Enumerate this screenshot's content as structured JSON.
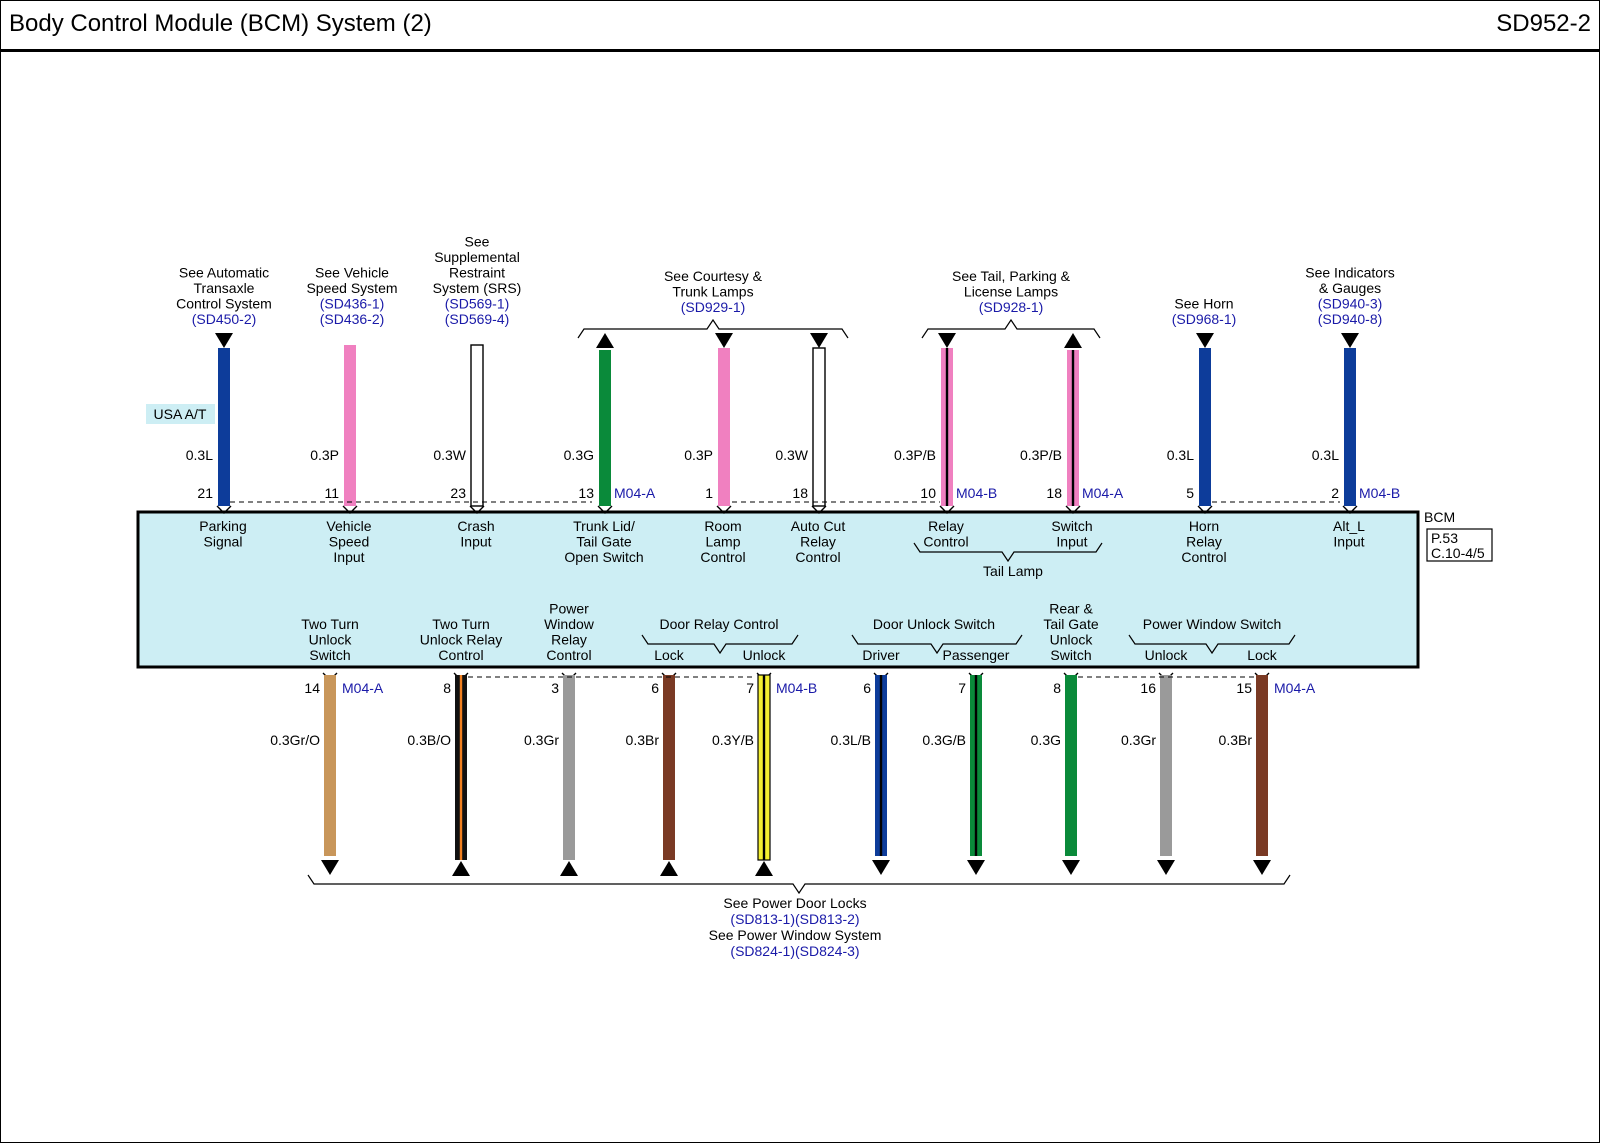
{
  "header": {
    "title": "Body Control Module (BCM) System (2)",
    "code": "SD952-2"
  },
  "colors": {
    "module_fill": "#cdeef4",
    "tag_fill": "#cdeef4",
    "ref_text": "#1a1aa8"
  },
  "module": {
    "name": "BCM",
    "page_lines": [
      "P.53",
      "C.10-4/5"
    ],
    "tail_lamp_group": "Tail Lamp",
    "bottom_groups": [
      {
        "label": "Door Relay Control"
      },
      {
        "label": "Door Unlock Switch"
      },
      {
        "label": "Power Window Switch"
      }
    ]
  },
  "option_tag": "USA A/T",
  "top_refs": [
    {
      "lines": [
        "See Automatic",
        "Transaxle",
        "Control System"
      ],
      "refs": [
        "(SD450-2)"
      ]
    },
    {
      "lines": [
        "See Vehicle",
        "Speed System"
      ],
      "refs": [
        "(SD436-1)",
        "(SD436-2)"
      ]
    },
    {
      "lines": [
        "See",
        "Supplemental",
        "Restraint",
        "System (SRS)"
      ],
      "refs": [
        "(SD569-1)",
        "(SD569-4)"
      ]
    },
    {
      "lines": [
        "See Courtesy &",
        "Trunk Lamps"
      ],
      "refs": [
        "(SD929-1)"
      ]
    },
    {
      "lines": [
        "See Tail, Parking &",
        "License Lamps"
      ],
      "refs": [
        "(SD928-1)"
      ]
    },
    {
      "lines": [
        "See Horn"
      ],
      "refs": [
        "(SD968-1)"
      ]
    },
    {
      "lines": [
        "See Indicators",
        "& Gauges"
      ],
      "refs": [
        "(SD940-3)",
        "(SD940-8)"
      ]
    }
  ],
  "bottom_ref": {
    "lines": [
      "See Power Door Locks",
      "(SD813-1)(SD813-2)",
      "See Power Window System",
      "(SD824-1)(SD824-3)"
    ]
  },
  "top_wires": [
    {
      "pin": "21",
      "wire": "0.3L",
      "connector": "",
      "label": [
        "Parking",
        "Signal"
      ],
      "color": "#0d3c9a",
      "stripe": "",
      "arrow": "down"
    },
    {
      "pin": "11",
      "wire": "0.3P",
      "connector": "",
      "label": [
        "Vehicle",
        "Speed",
        "Input"
      ],
      "color": "#f080c0",
      "stripe": "",
      "arrow": "none"
    },
    {
      "pin": "23",
      "wire": "0.3W",
      "connector": "",
      "label": [
        "Crash",
        "Input"
      ],
      "color": "#ffffff",
      "stripe": "",
      "arrow": "none"
    },
    {
      "pin": "13",
      "wire": "0.3G",
      "connector": "M04-A",
      "label": [
        "Trunk Lid/",
        "Tail Gate",
        "Open Switch"
      ],
      "color": "#0a8a3a",
      "stripe": "",
      "arrow": "up"
    },
    {
      "pin": "1",
      "wire": "0.3P",
      "connector": "",
      "label": [
        "Room",
        "Lamp",
        "Control"
      ],
      "color": "#f080c0",
      "stripe": "",
      "arrow": "down"
    },
    {
      "pin": "18",
      "wire": "0.3W",
      "connector": "",
      "label": [
        "Auto Cut",
        "Relay",
        "Control"
      ],
      "color": "#ffffff",
      "stripe": "",
      "arrow": "down"
    },
    {
      "pin": "10",
      "wire": "0.3P/B",
      "connector": "M04-B",
      "label": [
        "Relay",
        "Control"
      ],
      "color": "#f080c0",
      "stripe": "#000000",
      "arrow": "down"
    },
    {
      "pin": "18",
      "wire": "0.3P/B",
      "connector": "M04-A",
      "label": [
        "Switch",
        "Input"
      ],
      "color": "#f080c0",
      "stripe": "#000000",
      "arrow": "up"
    },
    {
      "pin": "5",
      "wire": "0.3L",
      "connector": "",
      "label": [
        "Horn",
        "Relay",
        "Control"
      ],
      "color": "#0d3c9a",
      "stripe": "",
      "arrow": "down"
    },
    {
      "pin": "2",
      "wire": "0.3L",
      "connector": "M04-B",
      "label": [
        "Alt_L",
        "Input"
      ],
      "color": "#0d3c9a",
      "stripe": "",
      "arrow": "down"
    }
  ],
  "bottom_wires": [
    {
      "pin": "14",
      "wire": "0.3Gr/O",
      "connector": "M04-A",
      "label": [
        "Two Turn",
        "Unlock",
        "Switch"
      ],
      "color": "#c8965a",
      "stripe": "",
      "arrow": "down"
    },
    {
      "pin": "8",
      "wire": "0.3B/O",
      "connector": "",
      "label": [
        "Two Turn",
        "Unlock Relay",
        "Control"
      ],
      "color": "#111111",
      "stripe": "#f08020",
      "arrow": "up"
    },
    {
      "pin": "3",
      "wire": "0.3Gr",
      "connector": "",
      "label": [
        "Power",
        "Window",
        "Relay",
        "Control"
      ],
      "color": "#9a9a9a",
      "stripe": "",
      "arrow": "up"
    },
    {
      "pin": "6",
      "wire": "0.3Br",
      "connector": "",
      "label": [
        "Lock"
      ],
      "color": "#7a3a24",
      "stripe": "",
      "arrow": "up"
    },
    {
      "pin": "7",
      "wire": "0.3Y/B",
      "connector": "M04-B",
      "label": [
        "Unlock"
      ],
      "color": "#f4f030",
      "stripe": "#000000",
      "arrow": "up"
    },
    {
      "pin": "6",
      "wire": "0.3L/B",
      "connector": "",
      "label": [
        "Driver"
      ],
      "color": "#0d3c9a",
      "stripe": "#000000",
      "arrow": "down"
    },
    {
      "pin": "7",
      "wire": "0.3G/B",
      "connector": "",
      "label": [
        "Passenger"
      ],
      "color": "#0a8a3a",
      "stripe": "#000000",
      "arrow": "down"
    },
    {
      "pin": "8",
      "wire": "0.3G",
      "connector": "",
      "label": [
        "Rear &",
        "Tail Gate",
        "Unlock",
        "Switch"
      ],
      "color": "#0a8a3a",
      "stripe": "",
      "arrow": "down"
    },
    {
      "pin": "16",
      "wire": "0.3Gr",
      "connector": "",
      "label": [
        "Unlock"
      ],
      "color": "#9a9a9a",
      "stripe": "",
      "arrow": "down"
    },
    {
      "pin": "15",
      "wire": "0.3Br",
      "connector": "M04-A",
      "label": [
        "Lock"
      ],
      "color": "#7a3a24",
      "stripe": "",
      "arrow": "down"
    }
  ]
}
